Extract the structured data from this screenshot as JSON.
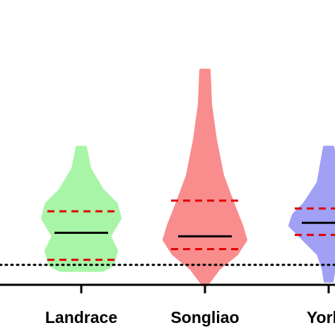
{
  "chart_data": {
    "type": "violin",
    "categories": [
      "Landrace",
      "Songliao",
      "Yorks"
    ],
    "ylim": [
      -30,
      300
    ],
    "hline": 0,
    "series": [
      {
        "name": "Landrace",
        "color": "#a8f5a8",
        "levels": [
          165,
          135,
          105,
          85,
          65,
          40,
          20,
          0,
          -8
        ],
        "widths": [
          6,
          12,
          30,
          50,
          55,
          40,
          50,
          45,
          30
        ],
        "median": 45,
        "q1": 7,
        "q3": 75
      },
      {
        "name": "Songliao",
        "color": "#f98c8c",
        "levels": [
          273,
          225,
          175,
          125,
          85,
          55,
          35,
          15,
          -5,
          -25,
          -28
        ],
        "widths": [
          6,
          8,
          15,
          25,
          40,
          52,
          58,
          45,
          20,
          5,
          3
        ],
        "median": 40,
        "q1": 22,
        "q3": 90
      },
      {
        "name": "Yorks",
        "color": "#a0a0f5",
        "levels": [
          165,
          115,
          85,
          70,
          55,
          35,
          15,
          -5,
          -23
        ],
        "widths": [
          6,
          15,
          35,
          50,
          55,
          35,
          15,
          8,
          5
        ],
        "median": 59,
        "q1": 42,
        "q3": 79
      }
    ]
  }
}
